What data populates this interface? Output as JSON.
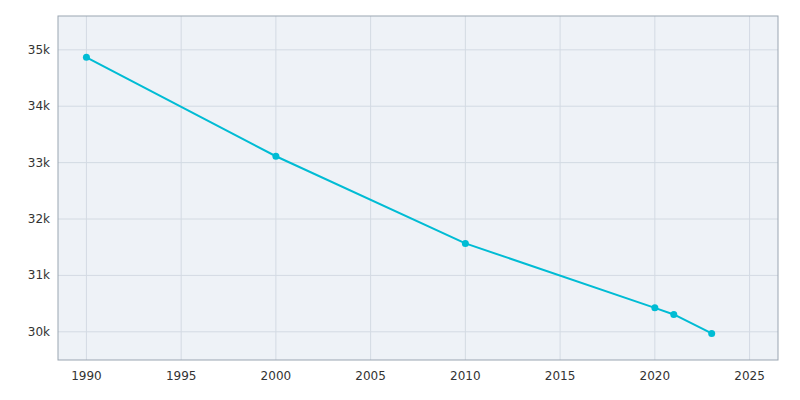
{
  "chart_data": {
    "type": "line",
    "x": [
      1990,
      2000,
      2010,
      2020,
      2021,
      2023
    ],
    "values": [
      34868,
      33113,
      31568,
      30425,
      30308,
      29971
    ],
    "color": "#00bcd4",
    "marker": "circle",
    "xlim": [
      1988.5,
      2026.5
    ],
    "ylim": [
      29500,
      35600
    ],
    "xticks": [
      1990,
      1995,
      2000,
      2005,
      2010,
      2015,
      2020,
      2025
    ],
    "yticks": [
      {
        "value": 30000,
        "label": "30k"
      },
      {
        "value": 31000,
        "label": "31k"
      },
      {
        "value": 32000,
        "label": "32k"
      },
      {
        "value": 33000,
        "label": "33k"
      },
      {
        "value": 34000,
        "label": "34k"
      },
      {
        "value": 35000,
        "label": "35k"
      }
    ],
    "grid": true
  }
}
